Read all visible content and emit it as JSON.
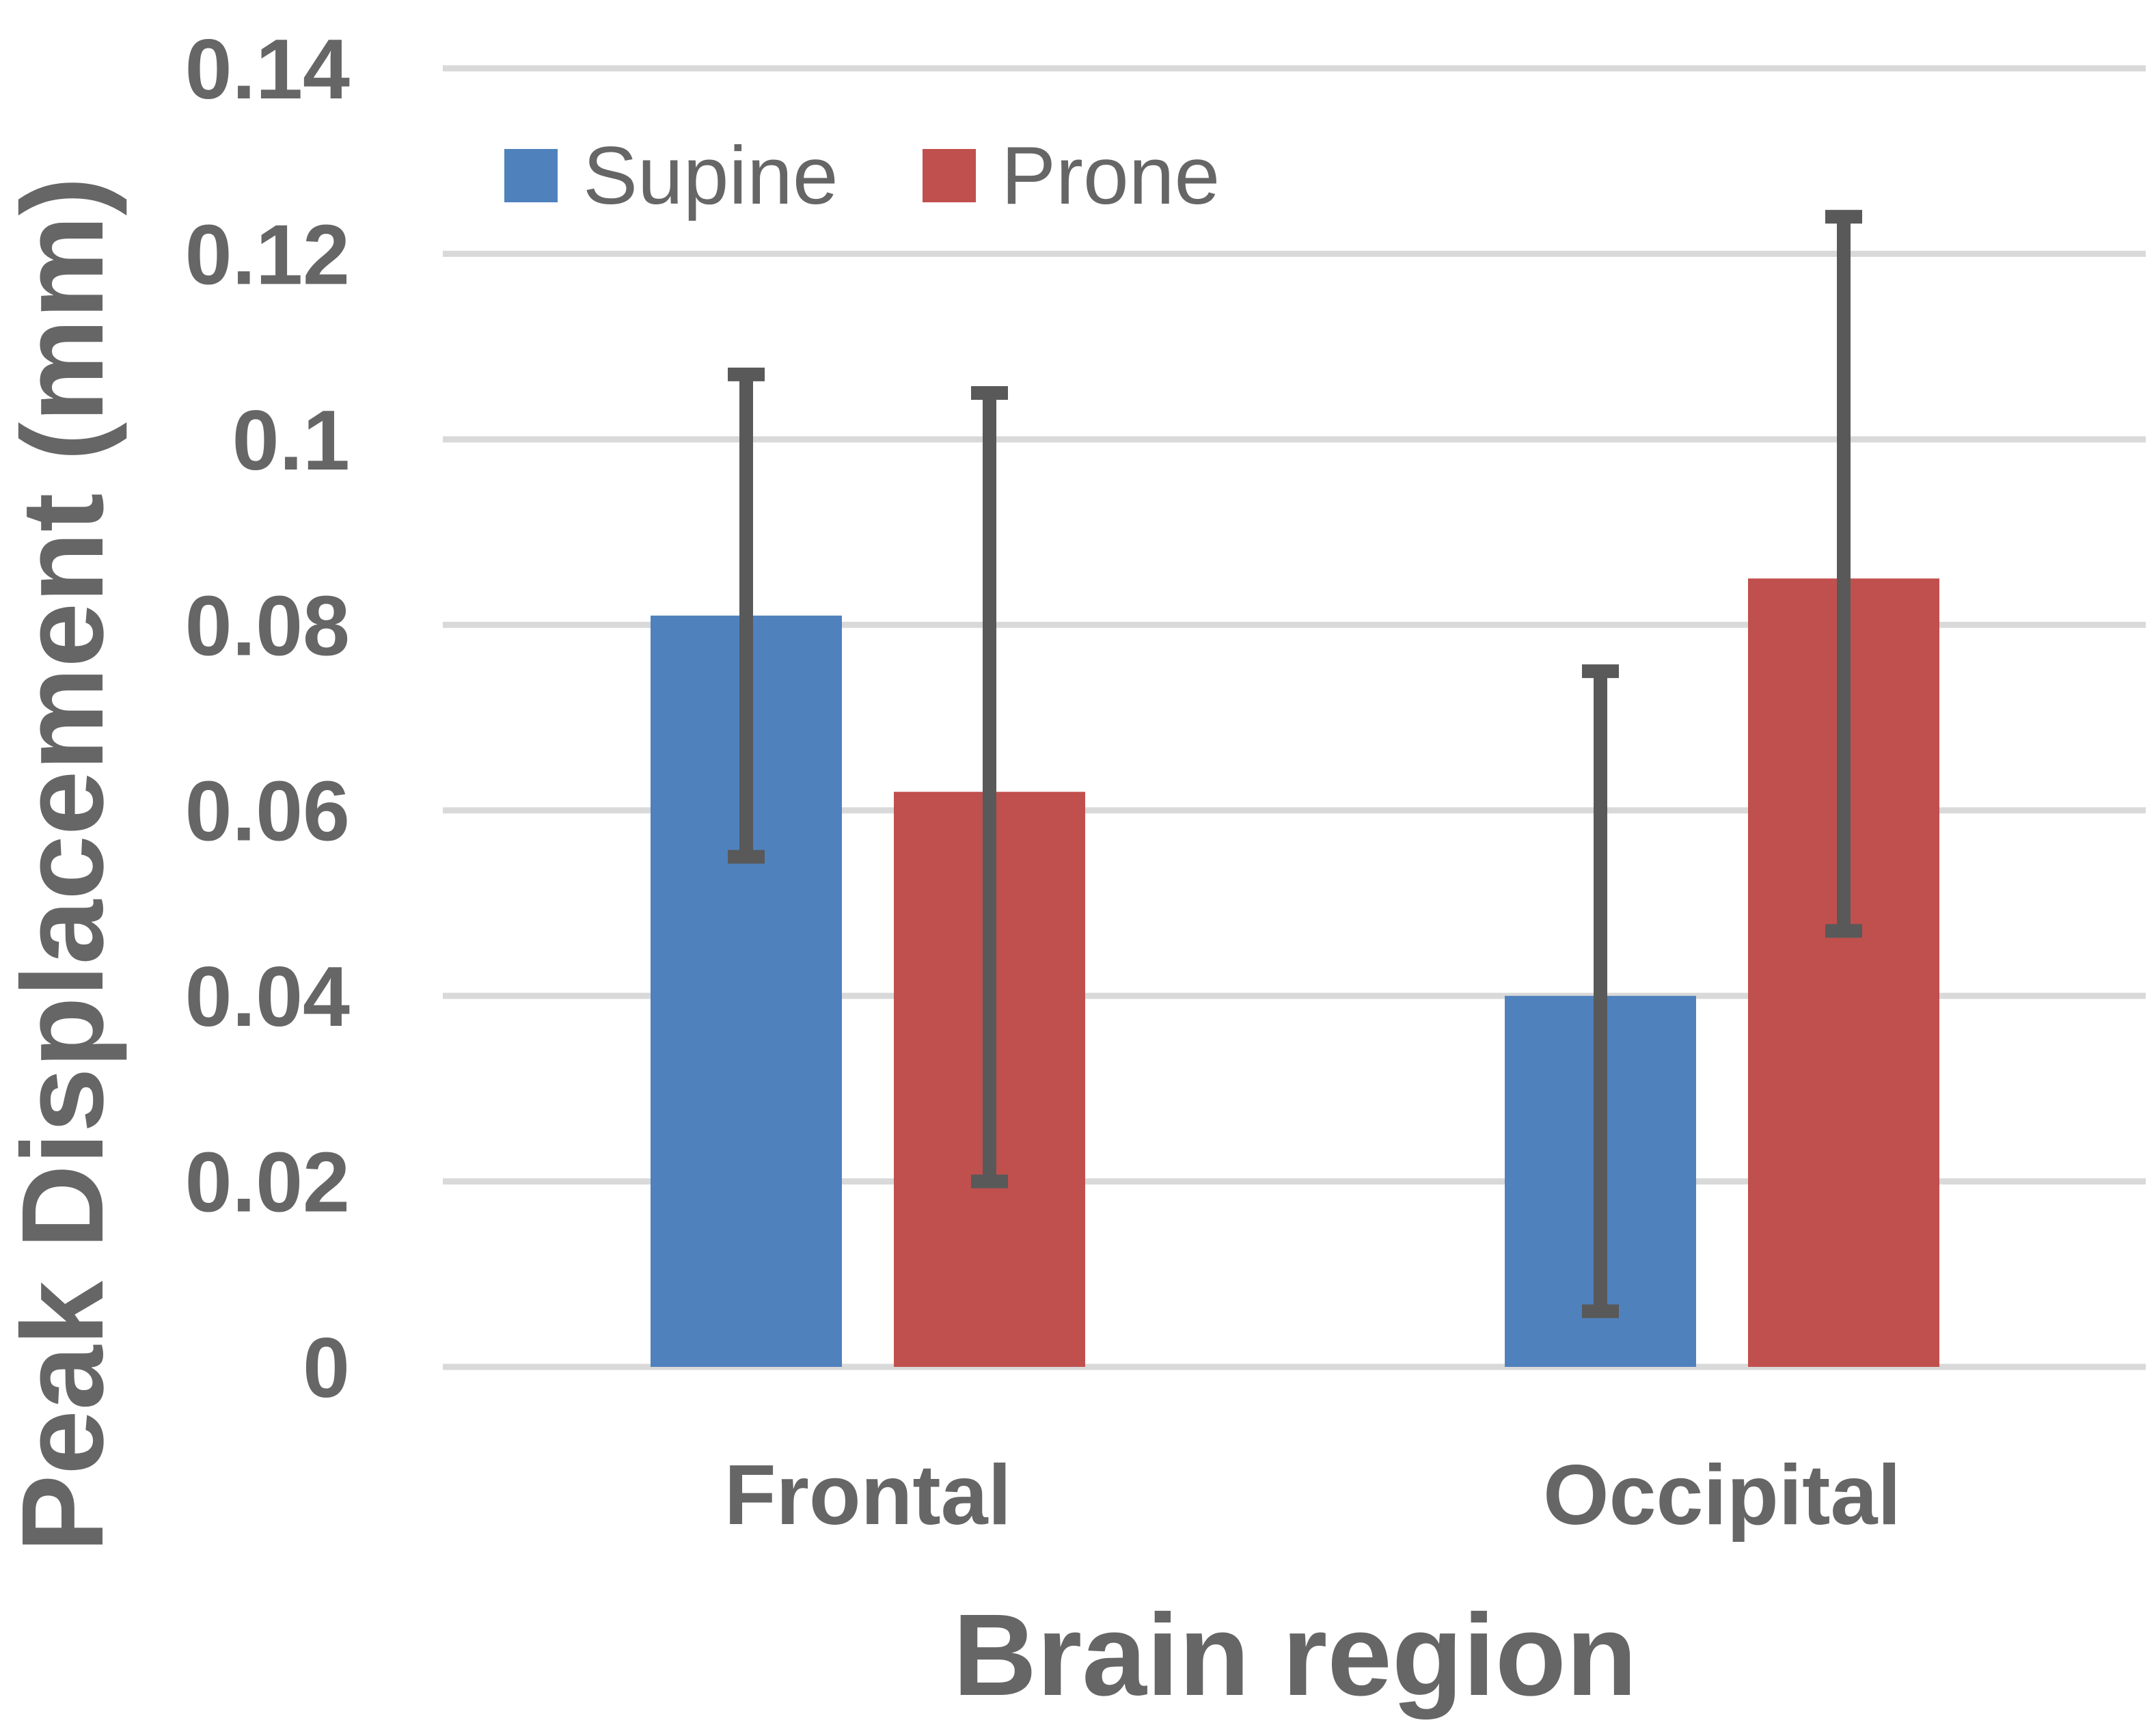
{
  "chart_data": {
    "type": "bar",
    "title": "",
    "xlabel": "Brain region",
    "ylabel": "Peak Displacement (mm)",
    "categories": [
      "Frontal",
      "Occipital"
    ],
    "ylim": [
      0,
      0.14
    ],
    "yticks": [
      0,
      0.02,
      0.04,
      0.06,
      0.08,
      0.1,
      0.12,
      0.14
    ],
    "ytick_labels": [
      "0",
      "0.02",
      "0.04",
      "0.06",
      "0.08",
      "0.1",
      "0.12",
      "0.14"
    ],
    "grid": true,
    "legend_position": "top-left",
    "series": [
      {
        "name": "Supine",
        "color": "#4f81bd",
        "values": [
          0.081,
          0.04
        ],
        "error_low": [
          0.055,
          0.006
        ],
        "error_high": [
          0.107,
          0.075
        ]
      },
      {
        "name": "Prone",
        "color": "#c0504d",
        "values": [
          0.062,
          0.085
        ],
        "error_low": [
          0.02,
          0.047
        ],
        "error_high": [
          0.105,
          0.124
        ]
      }
    ],
    "colors": {
      "grid": "#d9d9d9",
      "text": "#666666",
      "error_bar": "#595959"
    }
  }
}
